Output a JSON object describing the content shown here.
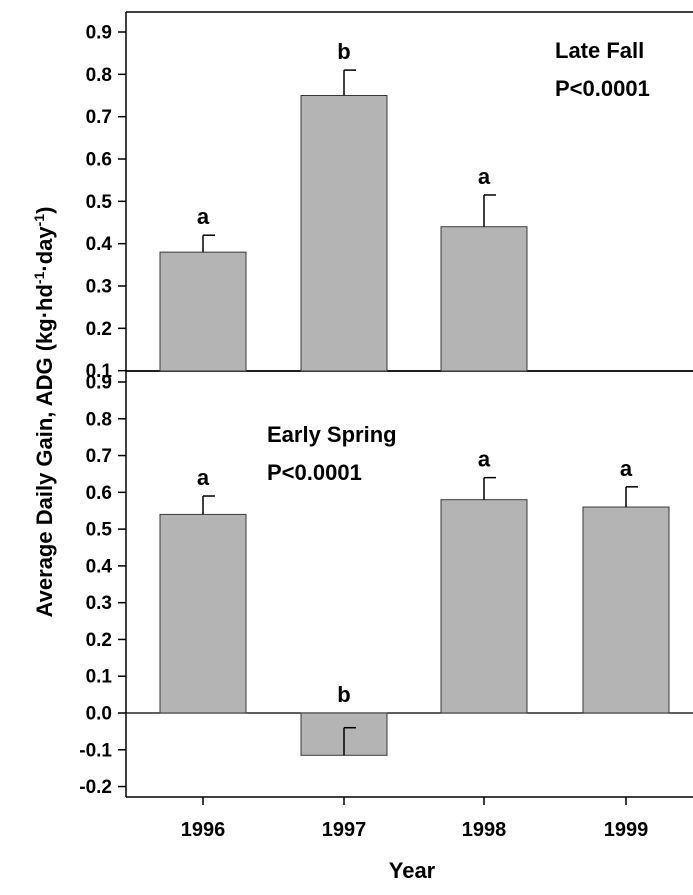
{
  "chart_data": [
    {
      "type": "bar",
      "panel": "top",
      "annotation_lines": [
        "Late Fall",
        "P<0.0001"
      ],
      "categories": [
        "1996",
        "1997",
        "1998",
        "1999"
      ],
      "values": [
        0.38,
        0.75,
        0.44,
        null
      ],
      "error_plus": [
        0.04,
        0.06,
        0.075,
        null
      ],
      "significance_letters": [
        "a",
        "b",
        "a",
        ""
      ],
      "ylim": [
        0,
        0.9
      ],
      "yticks": [
        "0.9",
        "0.8",
        "0.7",
        "0.6",
        "0.5",
        "0.4",
        "0.3",
        "0.2",
        "0.1"
      ],
      "bar_color": "#b4b4b4"
    },
    {
      "type": "bar",
      "panel": "bottom",
      "annotation_lines": [
        "Early Spring",
        "P<0.0001"
      ],
      "categories": [
        "1996",
        "1997",
        "1998",
        "1999"
      ],
      "values": [
        0.54,
        -0.115,
        0.58,
        0.56
      ],
      "error_plus": [
        0.05,
        0.075,
        0.06,
        0.055
      ],
      "significance_letters": [
        "a",
        "b",
        "a",
        "a"
      ],
      "ylim": [
        -0.2,
        0.9
      ],
      "yticks": [
        "0.9",
        "0.8",
        "0.7",
        "0.6",
        "0.5",
        "0.4",
        "0.3",
        "0.2",
        "0.1",
        "0.0",
        "-0.1",
        "-0.2"
      ],
      "bar_color": "#b4b4b4"
    }
  ],
  "axes": {
    "ylabel_main": "Average Daily Gain, ADG (kg·hd",
    "ylabel_exp1": "-1",
    "ylabel_mid": "·day",
    "ylabel_exp2": "-1",
    "ylabel_end": ")",
    "xlabel": "Year",
    "year_labels": [
      "1996",
      "1997",
      "1998",
      "1999"
    ]
  }
}
